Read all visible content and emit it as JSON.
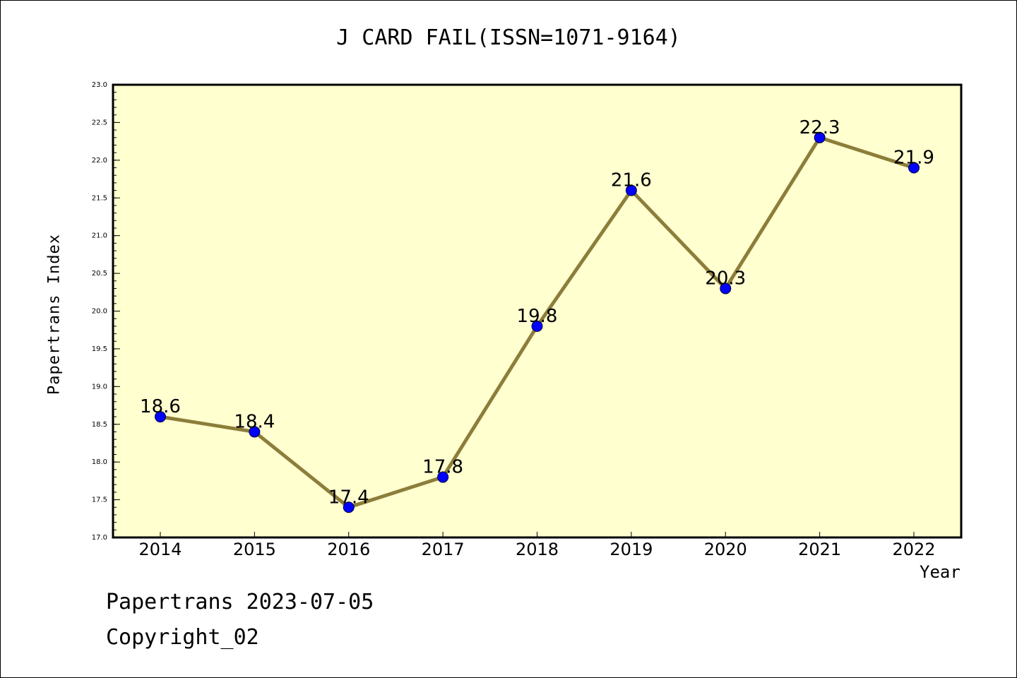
{
  "chart_data": {
    "type": "line",
    "title": "J CARD FAIL(ISSN=1071-9164)",
    "xlabel": "Year",
    "ylabel": "Papertrans Index",
    "categories": [
      "2014",
      "2015",
      "2016",
      "2017",
      "2018",
      "2019",
      "2020",
      "2021",
      "2022"
    ],
    "values": [
      18.6,
      18.4,
      17.4,
      17.8,
      19.8,
      21.6,
      20.3,
      22.3,
      21.9
    ],
    "data_labels": [
      "18.6",
      "18.4",
      "17.4",
      "17.8",
      "19.8",
      "21.6",
      "20.3",
      "22.3",
      "21.9"
    ],
    "ylim": [
      17.0,
      23.0
    ],
    "yticks": [
      "17.0",
      "17.5",
      "18.0",
      "18.5",
      "19.0",
      "19.5",
      "20.0",
      "20.5",
      "21.0",
      "21.5",
      "22.0",
      "22.5",
      "23.0"
    ],
    "grid": false,
    "colors": {
      "line": "#8c7d3a",
      "marker": "#0000ff",
      "plot_background": "#ffffd0"
    }
  },
  "footer": {
    "date": "Papertrans 2023-07-05",
    "copyright": "Copyright_02"
  }
}
